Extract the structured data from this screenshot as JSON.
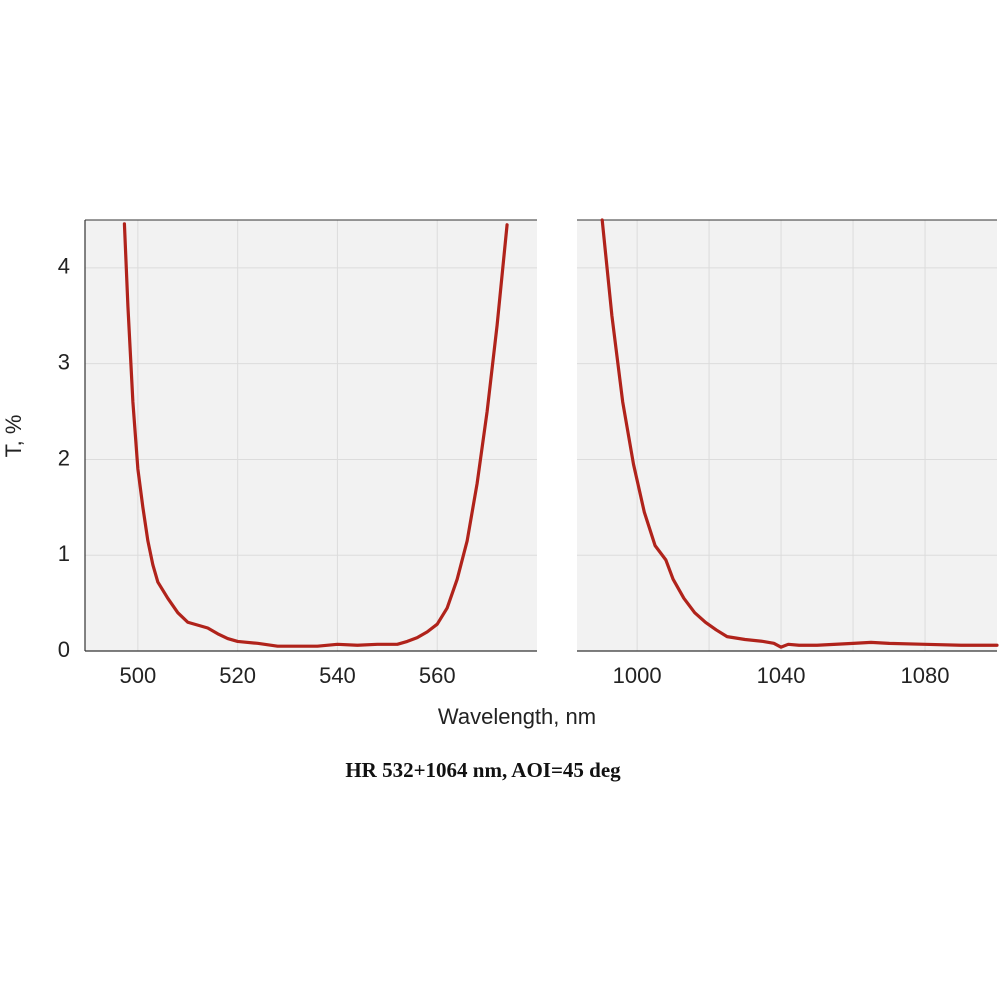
{
  "chart_data": [
    {
      "type": "line",
      "ylabel": "T, %",
      "x": [
        497.3,
        498,
        499,
        500,
        501,
        502,
        503,
        504,
        506,
        508,
        510,
        512,
        514,
        516,
        518,
        520,
        524,
        528,
        532,
        536,
        540,
        544,
        548,
        552,
        554,
        556,
        558,
        560,
        562,
        564,
        566,
        568,
        570,
        572,
        574
      ],
      "series": [
        {
          "color": "#b0231b",
          "values": [
            4.46,
            3.6,
            2.6,
            1.9,
            1.5,
            1.15,
            0.9,
            0.72,
            0.55,
            0.4,
            0.3,
            0.27,
            0.24,
            0.18,
            0.13,
            0.1,
            0.08,
            0.05,
            0.05,
            0.05,
            0.07,
            0.06,
            0.07,
            0.07,
            0.1,
            0.14,
            0.2,
            0.28,
            0.45,
            0.75,
            1.15,
            1.75,
            2.5,
            3.4,
            4.45
          ]
        }
      ],
      "xlim": [
        489.4,
        580
      ],
      "xticks": [
        500,
        520,
        540,
        560
      ],
      "ylim": [
        0,
        4.5
      ],
      "yticks": [
        0,
        1,
        2,
        3,
        4
      ],
      "grid": true
    },
    {
      "type": "line",
      "x": [
        990.3,
        993,
        996,
        999,
        1002,
        1005,
        1008,
        1010,
        1013,
        1016,
        1019,
        1022,
        1025,
        1030,
        1035,
        1038,
        1040,
        1042,
        1045,
        1050,
        1060,
        1065,
        1070,
        1080,
        1090,
        1100
      ],
      "series": [
        {
          "color": "#b0231b",
          "values": [
            4.5,
            3.5,
            2.6,
            1.95,
            1.45,
            1.1,
            0.95,
            0.75,
            0.55,
            0.4,
            0.3,
            0.22,
            0.15,
            0.12,
            0.1,
            0.08,
            0.04,
            0.07,
            0.06,
            0.06,
            0.08,
            0.09,
            0.08,
            0.07,
            0.06,
            0.06
          ]
        }
      ],
      "xlim": [
        983.3,
        1100
      ],
      "xticks": [
        1000,
        1040,
        1080
      ],
      "xminorticks": [
        1020,
        1060
      ],
      "ylim": [
        0,
        4.5
      ],
      "yticks": [
        0,
        1,
        2,
        3,
        4
      ],
      "grid": true
    }
  ],
  "xlabel": "Wavelength, nm",
  "caption": "HR 532+1064 nm, AOI=45 deg"
}
